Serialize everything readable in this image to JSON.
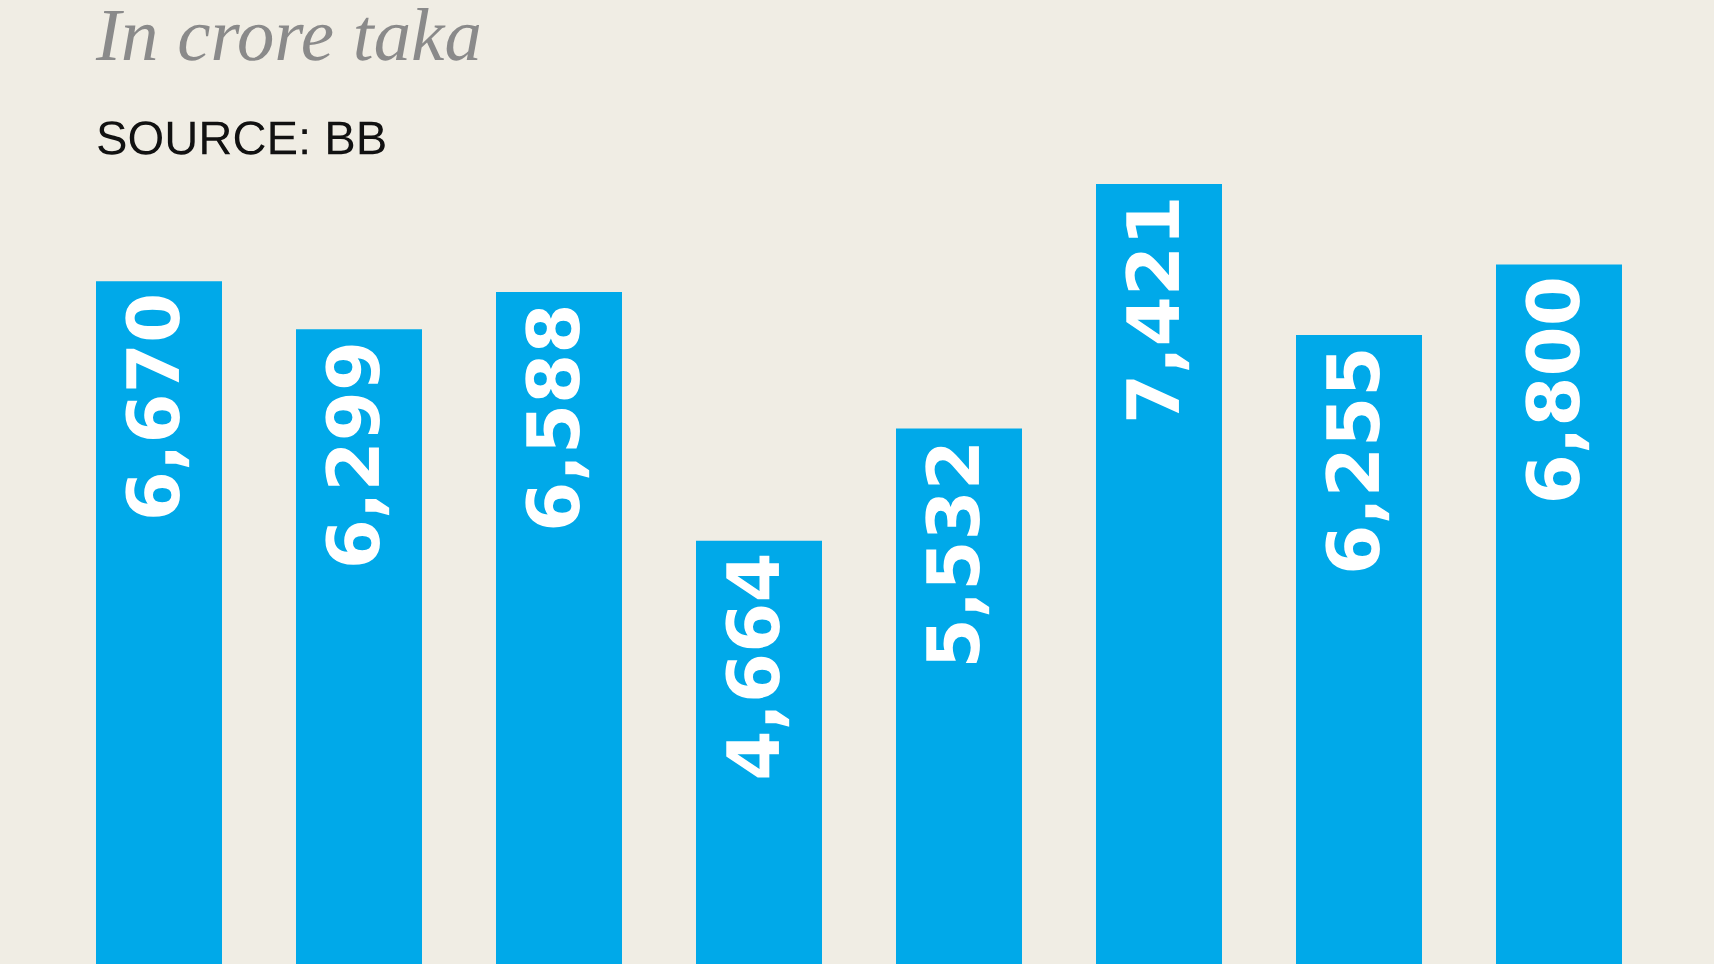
{
  "chart_data": {
    "type": "bar",
    "title": "In crore taka",
    "subtitle": "SOURCE: BB",
    "categories": [
      null,
      null,
      null,
      null,
      null,
      null,
      null,
      null
    ],
    "values": [
      6670,
      6299,
      6588,
      4664,
      5532,
      7421,
      6255,
      6800
    ],
    "value_labels": [
      "6,670",
      "6,299",
      "6,588",
      "4,664",
      "5,532",
      "7,421",
      "6,255",
      "6,800"
    ],
    "color": "#00a9e9"
  }
}
